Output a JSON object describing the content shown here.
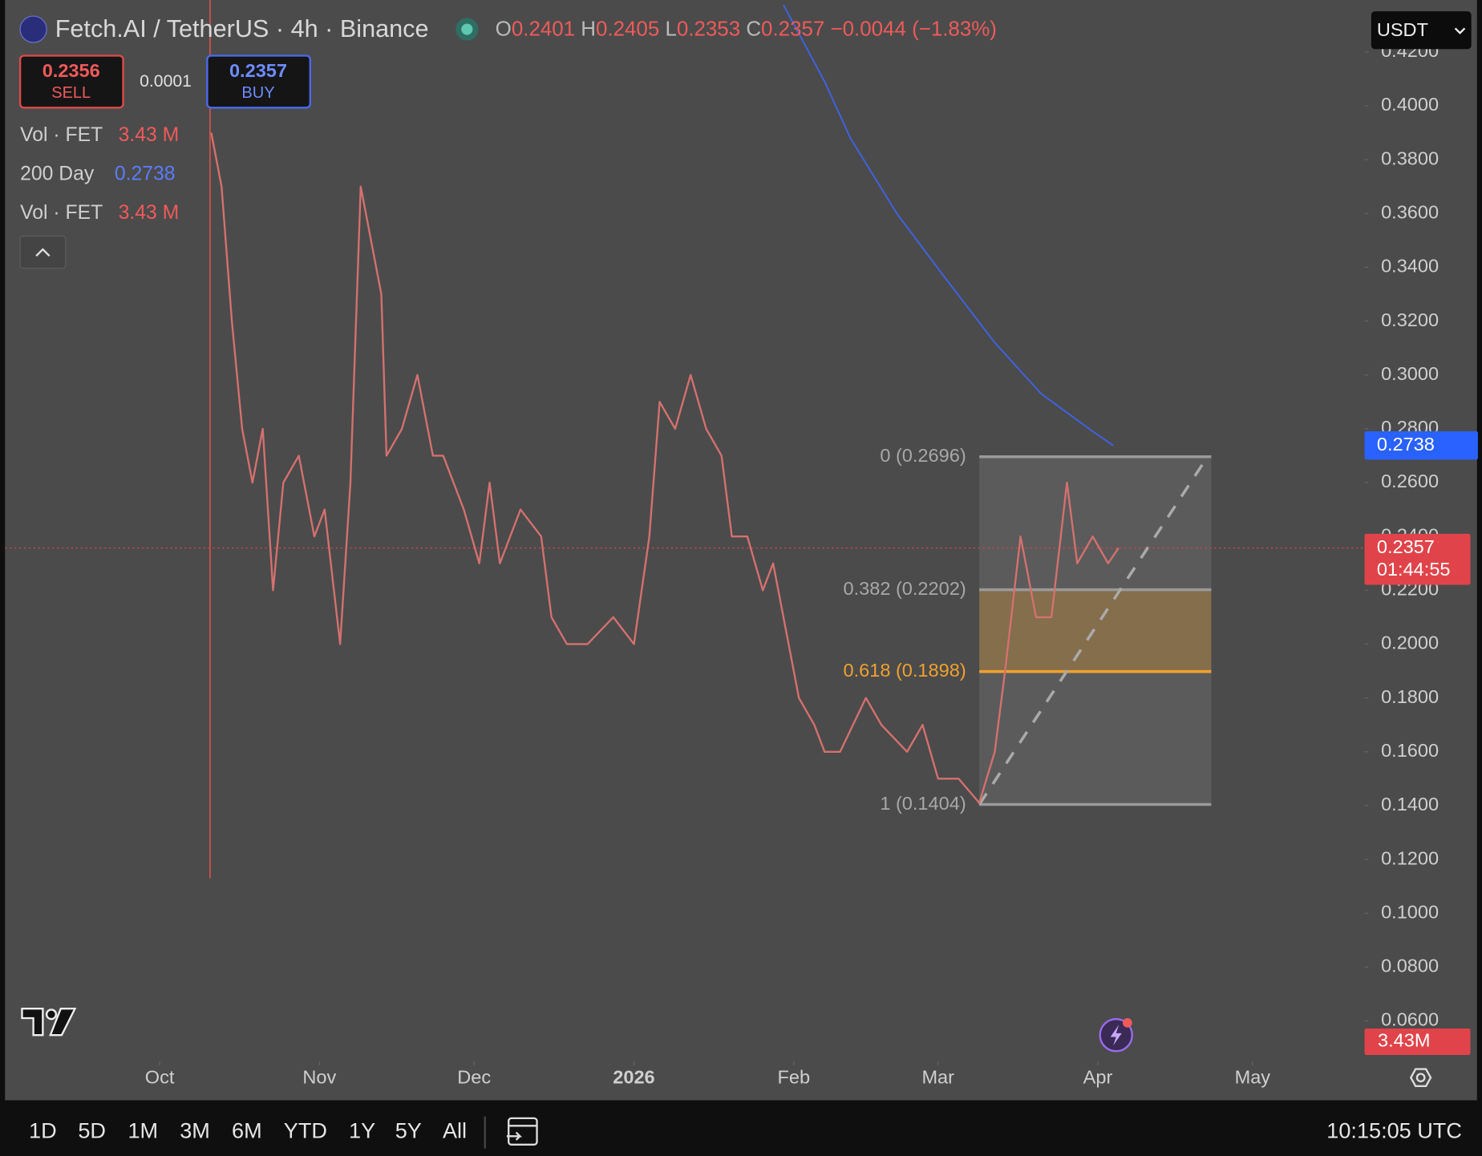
{
  "header": {
    "symbol": "Fetch.AI / TetherUS · 4h · Binance",
    "ohlc": [
      {
        "key": "O",
        "value": "0.2401"
      },
      {
        "key": "H",
        "value": "0.2405"
      },
      {
        "key": "L",
        "value": "0.2353"
      },
      {
        "key": "C",
        "value": "0.2357"
      }
    ],
    "change": "−0.0044 (−1.83%)",
    "currency": "USDT"
  },
  "trade": {
    "sell_price": "0.2356",
    "sell_label": "SELL",
    "spread": "0.0001",
    "buy_price": "0.2357",
    "buy_label": "BUY"
  },
  "legend": [
    {
      "name": "Vol · FET",
      "value": "3.43 M"
    },
    {
      "name": "Vol · FET",
      "value": "3.43 M"
    }
  ],
  "chart_data": {
    "type": "line",
    "xlim": [
      -30,
      233
    ],
    "ylim": [
      0.0463,
      0.4393
    ],
    "xticks": [
      {
        "value": 0,
        "label": "Oct"
      },
      {
        "value": 31,
        "label": "Nov"
      },
      {
        "value": 61,
        "label": "Dec"
      },
      {
        "value": 92,
        "label": "2026"
      },
      {
        "value": 123,
        "label": "Feb"
      },
      {
        "value": 151,
        "label": "Mar"
      },
      {
        "value": 182,
        "label": "Apr"
      },
      {
        "value": 212,
        "label": "May"
      }
    ],
    "yticks": [
      {
        "value": 0.06,
        "label": "0.0600"
      },
      {
        "value": 0.08,
        "label": "0.0800"
      },
      {
        "value": 0.1,
        "label": "0.1000"
      },
      {
        "value": 0.12,
        "label": "0.1200"
      },
      {
        "value": 0.14,
        "label": "0.1400"
      },
      {
        "value": 0.16,
        "label": "0.1600"
      },
      {
        "value": 0.18,
        "label": "0.1800"
      },
      {
        "value": 0.2,
        "label": "0.2000"
      },
      {
        "value": 0.22,
        "label": "0.2200"
      },
      {
        "value": 0.24,
        "label": "0.2400"
      },
      {
        "value": 0.26,
        "label": "0.2600"
      },
      {
        "value": 0.28,
        "label": "0.2800"
      },
      {
        "value": 0.3,
        "label": "0.3000"
      },
      {
        "value": 0.32,
        "label": "0.3200"
      },
      {
        "value": 0.34,
        "label": "0.3400"
      },
      {
        "value": 0.36,
        "label": "0.3600"
      },
      {
        "value": 0.38,
        "label": "0.3800"
      },
      {
        "value": 0.4,
        "label": "0.4000"
      },
      {
        "value": 0.42,
        "label": "0.4200"
      }
    ],
    "series": [
      {
        "color": "#d4716f",
        "x": [
          10,
          12,
          14,
          16,
          18,
          20,
          22,
          24,
          27,
          30,
          32,
          35,
          37,
          39,
          41,
          43,
          44,
          47,
          50,
          53,
          55,
          59,
          62,
          64,
          66,
          70,
          74,
          76,
          79,
          83,
          88,
          92,
          95,
          97,
          100,
          103,
          106,
          109,
          111,
          114,
          117,
          119,
          122,
          124,
          127,
          129,
          132,
          137,
          140,
          145,
          148,
          151,
          155,
          159,
          162,
          164,
          167,
          170,
          173,
          176,
          178,
          181,
          184,
          186
        ],
        "values": [
          0.39,
          0.37,
          0.32,
          0.28,
          0.26,
          0.28,
          0.22,
          0.26,
          0.27,
          0.24,
          0.25,
          0.2,
          0.26,
          0.37,
          0.35,
          0.33,
          0.27,
          0.28,
          0.3,
          0.27,
          0.27,
          0.25,
          0.23,
          0.26,
          0.23,
          0.25,
          0.24,
          0.21,
          0.2,
          0.2,
          0.21,
          0.2,
          0.24,
          0.29,
          0.28,
          0.3,
          0.28,
          0.27,
          0.24,
          0.24,
          0.22,
          0.23,
          0.2,
          0.18,
          0.17,
          0.16,
          0.16,
          0.18,
          0.17,
          0.16,
          0.17,
          0.15,
          0.15,
          0.141,
          0.16,
          0.19,
          0.24,
          0.21,
          0.21,
          0.26,
          0.23,
          0.24,
          0.23,
          0.2357
        ]
      },
      {
        "name": "200 Day",
        "color": "#3f63e6",
        "x": [
          121,
          129,
          134,
          143,
          152,
          162,
          171,
          181,
          185
        ],
        "values": [
          0.4375,
          0.409,
          0.388,
          0.36,
          0.337,
          0.312,
          0.293,
          0.279,
          0.2738
        ]
      }
    ],
    "price_tags": [
      {
        "value": 0.2738,
        "label": "0.2738",
        "color": "#2962ff"
      },
      {
        "value": 0.2357,
        "label": "0.2357",
        "countdown": "01:44:55",
        "color": "#e0444a"
      }
    ],
    "volume_tag": "3.43M",
    "fib": {
      "x": [
        159,
        204
      ],
      "levels": [
        {
          "value": 0.2696,
          "label": "0 (0.2696)"
        },
        {
          "value": 0.2202,
          "label": "0.382 (0.2202)"
        },
        {
          "value": 0.1898,
          "label": "0.618 (0.1898)"
        },
        {
          "value": 0.1404,
          "label": "1 (0.1404)"
        }
      ]
    }
  },
  "toolbar": {
    "ranges": [
      "1D",
      "5D",
      "1M",
      "3M",
      "6M",
      "YTD",
      "1Y",
      "5Y",
      "All"
    ],
    "time": "10:15:05 UTC"
  }
}
